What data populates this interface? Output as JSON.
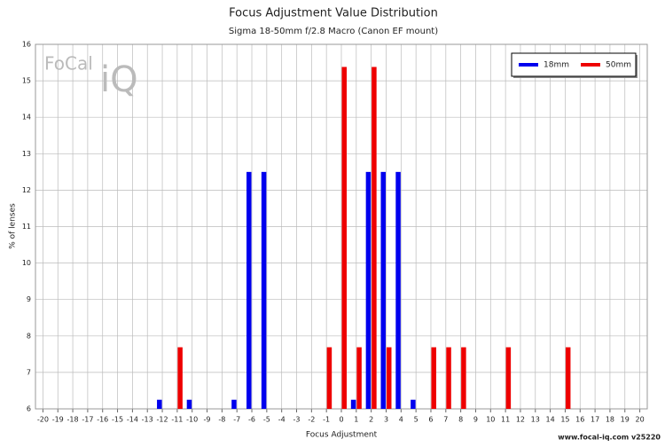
{
  "chart_data": {
    "type": "bar",
    "title": "Focus Adjustment Value Distribution",
    "subtitle": "Sigma 18-50mm f/2.8 Macro (Canon EF mount)",
    "x_label": "Focus Adjustment",
    "y_label": "% of lenses",
    "watermark": [
      "FoCal",
      "iQ"
    ],
    "footer": "www.focal-iq.com  v25220",
    "x": [
      -20,
      -19,
      -18,
      -17,
      -16,
      -15,
      -14,
      -13,
      -12,
      -11,
      -10,
      -9,
      -8,
      -7,
      -6,
      -5,
      -4,
      -3,
      -2,
      -1,
      0,
      1,
      2,
      3,
      4,
      5,
      6,
      7,
      8,
      9,
      10,
      11,
      12,
      13,
      14,
      15,
      16,
      17,
      18,
      19,
      20
    ],
    "series": [
      {
        "name": "18mm",
        "color": "#0000ee",
        "values": [
          null,
          null,
          null,
          null,
          null,
          null,
          null,
          null,
          6.25,
          null,
          6.25,
          null,
          null,
          6.25,
          12.5,
          12.5,
          null,
          null,
          null,
          null,
          null,
          6.25,
          12.5,
          12.5,
          12.5,
          6.25,
          null,
          null,
          null,
          null,
          null,
          null,
          null,
          null,
          null,
          null,
          null,
          null,
          null,
          null,
          null
        ]
      },
      {
        "name": "50mm",
        "color": "#ee0000",
        "values": [
          null,
          null,
          null,
          null,
          null,
          null,
          null,
          null,
          null,
          7.69,
          null,
          null,
          null,
          null,
          null,
          null,
          null,
          null,
          null,
          7.69,
          15.38,
          7.69,
          15.38,
          7.69,
          null,
          null,
          7.69,
          7.69,
          7.69,
          null,
          null,
          7.69,
          null,
          null,
          null,
          7.69,
          null,
          null,
          null,
          null,
          null
        ]
      }
    ],
    "xlim": [
      -20.5,
      20.5
    ],
    "xticks": [
      -20,
      -19,
      -18,
      -17,
      -16,
      -15,
      -14,
      -13,
      -12,
      -11,
      -10,
      -9,
      -8,
      -7,
      -6,
      -5,
      -4,
      -3,
      -2,
      -1,
      0,
      1,
      2,
      3,
      4,
      5,
      6,
      7,
      8,
      9,
      10,
      11,
      12,
      13,
      14,
      15,
      16,
      17,
      18,
      19,
      20
    ],
    "ylim": [
      6,
      16
    ],
    "yticks": [
      6,
      7,
      8,
      9,
      10,
      11,
      12,
      13,
      14,
      15,
      16
    ],
    "grid": true,
    "legend": "top-right"
  }
}
